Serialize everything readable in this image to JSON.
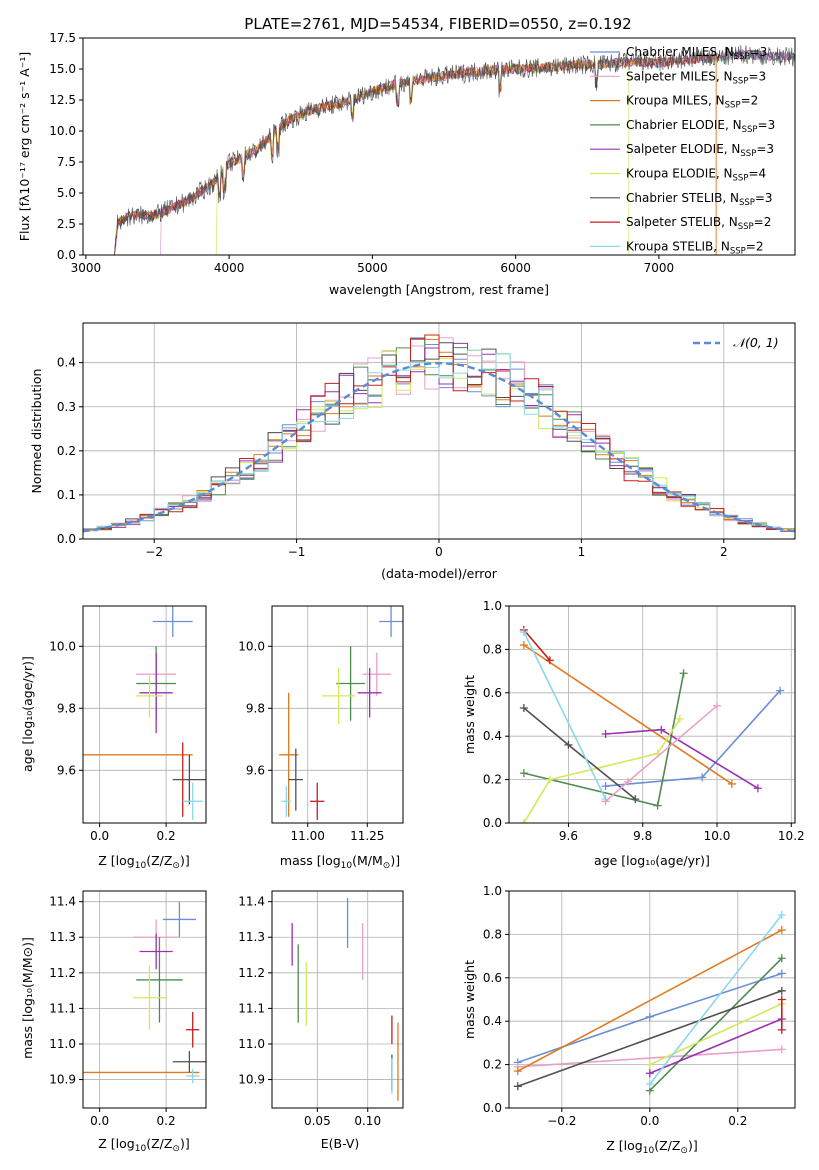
{
  "figure_title": "PLATE=2761, MJD=54534, FIBERID=0550, z=0.192",
  "models": [
    {
      "id": "chabrier-miles",
      "label": "Chabrier MILES, N",
      "sub": "SSP",
      "tail": "=3",
      "color": "#6b8ed6"
    },
    {
      "id": "salpeter-miles",
      "label": "Salpeter MILES, N",
      "sub": "SSP",
      "tail": "=3",
      "color": "#e8a0c8"
    },
    {
      "id": "kroupa-miles",
      "label": "Kroupa MILES, N",
      "sub": "SSP",
      "tail": "=2",
      "color": "#e07a1f"
    },
    {
      "id": "chabrier-elodie",
      "label": "Chabrier ELODIE, N",
      "sub": "SSP",
      "tail": "=3",
      "color": "#4f8a4f"
    },
    {
      "id": "salpeter-elodie",
      "label": "Salpeter ELODIE, N",
      "sub": "SSP",
      "tail": "=3",
      "color": "#9b30b0"
    },
    {
      "id": "kroupa-elodie",
      "label": "Kroupa ELODIE, N",
      "sub": "SSP",
      "tail": "=4",
      "color": "#d4e85a"
    },
    {
      "id": "chabrier-stelib",
      "label": "Chabrier STELIB, N",
      "sub": "SSP",
      "tail": "=3",
      "color": "#505050"
    },
    {
      "id": "salpeter-stelib",
      "label": "Salpeter STELIB, N",
      "sub": "SSP",
      "tail": "=2",
      "color": "#c81e1e"
    },
    {
      "id": "kroupa-stelib",
      "label": "Kroupa STELIB, N",
      "sub": "SSP",
      "tail": "=2",
      "color": "#8ad8e8"
    }
  ],
  "chart_data": [
    {
      "id": "spectrum",
      "type": "line",
      "xlabel": "wavelength [Angstrom, rest frame]",
      "ylabel": "Flux [fλ10⁻¹⁷ erg cm⁻² s⁻¹ A⁻¹]",
      "xlim": [
        2980,
        7950
      ],
      "ylim": [
        0,
        17.5
      ],
      "xticks": [
        3000,
        4000,
        5000,
        6000,
        7000
      ],
      "yticks": [
        0.0,
        2.5,
        5.0,
        7.5,
        10.0,
        12.5,
        15.0,
        17.5
      ],
      "continuum": {
        "x": [
          3200,
          3220,
          3300,
          3500,
          3700,
          3900,
          4000,
          4200,
          4400,
          4600,
          4800,
          5000,
          5200,
          5400,
          5600,
          5800,
          6000,
          6200,
          6400,
          6600,
          6800,
          7000,
          7200,
          7400,
          7600,
          7800
        ],
        "y": [
          0,
          2.6,
          3.1,
          3.3,
          4.3,
          5.9,
          7.4,
          8.5,
          10.8,
          11.8,
          12.3,
          13.2,
          13.9,
          14.3,
          14.6,
          14.9,
          15.0,
          15.1,
          15.3,
          15.4,
          15.6,
          15.5,
          15.8,
          15.9,
          16.2,
          16.0
        ]
      },
      "model_starts": [
        3200,
        3520,
        3200,
        3200,
        3200,
        3910,
        3200,
        3200,
        3200
      ],
      "model_ends": [
        7950,
        7950,
        7400,
        7950,
        7950,
        6790,
        7950,
        7400,
        7950
      ]
    },
    {
      "id": "residuals",
      "type": "histogram",
      "xlabel": "(data-model)/error",
      "ylabel": "Normed distribution",
      "xlim": [
        -2.5,
        2.5
      ],
      "ylim": [
        0,
        0.49
      ],
      "xticks": [
        -2,
        -1,
        0,
        1,
        2
      ],
      "yticks": [
        0.0,
        0.1,
        0.2,
        0.3,
        0.4
      ],
      "bin_width": 0.1,
      "legend": "𝒩(0, 1)",
      "gaussian_color": "#5b8bd6"
    },
    {
      "id": "age-vs-Z",
      "type": "scatter",
      "xlabel_main": "Z [log",
      "xlabel_sub": "10",
      "xlabel_tail": "(Z/Z",
      "xlabel_sun": "⊙",
      "xlabel_end": ")]",
      "ylabel": "age  [log₁₀(age/yr)]",
      "xlim": [
        -0.05,
        0.32
      ],
      "ylim": [
        9.43,
        10.13
      ],
      "xticks": [
        0.0,
        0.2
      ],
      "yticks": [
        9.6,
        9.8,
        10.0
      ],
      "points": [
        {
          "x": 0.22,
          "y": 10.08,
          "xerr": 0.06,
          "yerr": 0.05
        },
        {
          "x": 0.17,
          "y": 9.91,
          "xerr": 0.06,
          "yerr": 0.07
        },
        {
          "x": 0.08,
          "y": 9.65,
          "xerr": 0.2,
          "yerr": 0.0
        },
        {
          "x": 0.17,
          "y": 9.88,
          "xerr": 0.06,
          "yerr": 0.12
        },
        {
          "x": 0.17,
          "y": 9.85,
          "xerr": 0.05,
          "yerr": 0.13
        },
        {
          "x": 0.15,
          "y": 9.84,
          "xerr": 0.04,
          "yerr": 0.07
        },
        {
          "x": 0.27,
          "y": 9.57,
          "xerr": 0.05,
          "yerr": 0.08
        },
        {
          "x": 0.25,
          "y": 9.57,
          "xerr": 0.0,
          "yerr": 0.12
        },
        {
          "x": 0.28,
          "y": 9.5,
          "xerr": 0.03,
          "yerr": 0.06
        }
      ]
    },
    {
      "id": "age-vs-mass",
      "type": "scatter",
      "xlabel_main": "mass [log",
      "xlabel_sub": "10",
      "xlabel_tail": "(M/M",
      "xlabel_sun": "⊙",
      "xlabel_end": ")]",
      "xlim": [
        10.85,
        11.4
      ],
      "ylim": [
        9.43,
        10.13
      ],
      "xticks": [
        11.0,
        11.25
      ],
      "yticks": [
        9.6,
        9.8,
        10.0
      ],
      "points": [
        {
          "x": 11.35,
          "y": 10.08,
          "xerr": 0.05,
          "yerr": 0.05
        },
        {
          "x": 11.29,
          "y": 9.91,
          "xerr": 0.06,
          "yerr": 0.07
        },
        {
          "x": 10.92,
          "y": 9.65,
          "xerr": 0.04,
          "yerr": 0.2
        },
        {
          "x": 11.18,
          "y": 9.88,
          "xerr": 0.06,
          "yerr": 0.12
        },
        {
          "x": 11.26,
          "y": 9.85,
          "xerr": 0.05,
          "yerr": 0.08
        },
        {
          "x": 11.13,
          "y": 9.84,
          "xerr": 0.07,
          "yerr": 0.09
        },
        {
          "x": 10.95,
          "y": 9.57,
          "xerr": 0.03,
          "yerr": 0.1
        },
        {
          "x": 11.04,
          "y": 9.5,
          "xerr": 0.03,
          "yerr": 0.06
        },
        {
          "x": 10.91,
          "y": 9.5,
          "xerr": 0.02,
          "yerr": 0.05
        }
      ]
    },
    {
      "id": "weight-vs-age",
      "type": "line",
      "xlabel": "age  [log₁₀(age/yr)]",
      "ylabel": "mass weight",
      "xlim": [
        9.44,
        10.21
      ],
      "ylim": [
        0,
        1.0
      ],
      "xticks": [
        9.6,
        9.8,
        10.0,
        10.2
      ],
      "yticks": [
        0.0,
        0.2,
        0.4,
        0.6,
        0.8,
        1.0
      ],
      "series": [
        {
          "x": [
            9.7,
            9.96,
            10.17
          ],
          "y": [
            0.17,
            0.21,
            0.61
          ]
        },
        {
          "x": 9.7,
          "y": null
        },
        {
          "x": [
            9.48,
            10.04
          ],
          "y": [
            0.82,
            0.18
          ]
        },
        {
          "x": [
            9.48,
            9.84,
            9.91
          ],
          "y": [
            0.23,
            0.08,
            0.69
          ]
        },
        {
          "x": [
            9.7,
            9.85,
            10.11
          ],
          "y": [
            0.41,
            0.43,
            0.16
          ]
        },
        {
          "x": [
            9.48,
            9.55,
            9.84,
            9.9
          ],
          "y": [
            0.0,
            0.2,
            0.32,
            0.48
          ]
        },
        {
          "x": [
            9.48,
            9.6,
            9.78
          ],
          "y": [
            0.53,
            0.36,
            0.11
          ]
        },
        {
          "x": [
            9.48,
            9.55
          ],
          "y": [
            0.89,
            0.75
          ]
        },
        {
          "x": [
            9.48,
            9.7
          ],
          "y": [
            0.88,
            0.11
          ]
        }
      ],
      "pink_series": {
        "x": [
          9.7,
          9.76,
          10.0
        ],
        "y": [
          0.1,
          0.19,
          0.54
        ]
      }
    },
    {
      "id": "mass-vs-Z",
      "type": "scatter",
      "xlabel_main": "Z [log",
      "xlabel_sub": "10",
      "xlabel_tail": "(Z/Z",
      "xlabel_sun": "⊙",
      "xlabel_end": ")]",
      "ylabel": "mass [log₁₀(M/M⊙)]",
      "xlim": [
        -0.05,
        0.32
      ],
      "ylim": [
        10.82,
        11.43
      ],
      "xticks": [
        0.0,
        0.2
      ],
      "yticks": [
        10.9,
        11.0,
        11.1,
        11.2,
        11.3,
        11.4
      ],
      "points": [
        {
          "x": 0.24,
          "y": 11.35,
          "xerr": 0.05,
          "yerr": 0.05
        },
        {
          "x": 0.17,
          "y": 11.3,
          "xerr": 0.07,
          "yerr": 0.05
        },
        {
          "x": 0.08,
          "y": 10.92,
          "xerr": 0.22,
          "yerr": 0.0
        },
        {
          "x": 0.18,
          "y": 11.18,
          "xerr": 0.07,
          "yerr": 0.12
        },
        {
          "x": 0.17,
          "y": 11.26,
          "xerr": 0.05,
          "yerr": 0.05
        },
        {
          "x": 0.15,
          "y": 11.13,
          "xerr": 0.05,
          "yerr": 0.09
        },
        {
          "x": 0.27,
          "y": 10.95,
          "xerr": 0.05,
          "yerr": 0.03
        },
        {
          "x": 0.28,
          "y": 11.04,
          "xerr": 0.02,
          "yerr": 0.05
        },
        {
          "x": 0.28,
          "y": 10.91,
          "xerr": 0.02,
          "yerr": 0.02
        }
      ]
    },
    {
      "id": "mass-vs-ebv",
      "type": "scatter",
      "xlabel": "E(B-V)",
      "xlim": [
        0.005,
        0.135
      ],
      "ylim": [
        10.82,
        11.43
      ],
      "xticks": [
        0.05,
        0.1
      ],
      "yticks": [
        10.9,
        11.0,
        11.1,
        11.2,
        11.3,
        11.4
      ],
      "points": [
        {
          "x": 0.08,
          "y": 11.34,
          "xerr": 0,
          "yerr": 0.07
        },
        {
          "x": 0.095,
          "y": 11.26,
          "xerr": 0,
          "yerr": 0.08
        },
        {
          "x": 0.13,
          "y": 10.95,
          "xerr": 0,
          "yerr": 0.11
        },
        {
          "x": 0.031,
          "y": 11.17,
          "xerr": 0,
          "yerr": 0.11
        },
        {
          "x": 0.025,
          "y": 11.28,
          "xerr": 0,
          "yerr": 0.06
        },
        {
          "x": 0.039,
          "y": 11.14,
          "xerr": 0,
          "yerr": 0.09
        },
        {
          "x": 0.124,
          "y": 10.92,
          "xerr": 0,
          "yerr": 0.05
        },
        {
          "x": 0.124,
          "y": 11.04,
          "xerr": 0,
          "yerr": 0.04
        },
        {
          "x": 0.124,
          "y": 10.91,
          "xerr": 0,
          "yerr": 0.05
        }
      ]
    },
    {
      "id": "weight-vs-Z",
      "type": "line",
      "xlabel_main": "Z [log",
      "xlabel_sub": "10",
      "xlabel_tail": "(Z/Z",
      "xlabel_sun": "⊙",
      "xlabel_end": ")]",
      "ylabel": "mass weight",
      "xlim": [
        -0.32,
        0.33
      ],
      "ylim": [
        0,
        1.0
      ],
      "xticks": [
        -0.2,
        0.0,
        0.2
      ],
      "yticks": [
        0.0,
        0.2,
        0.4,
        0.6,
        0.8,
        1.0
      ],
      "series": [
        {
          "x": [
            -0.3,
            0.0,
            0.3
          ],
          "y": [
            0.21,
            0.42,
            0.62
          ]
        },
        {
          "x": [
            -0.3,
            0.3
          ],
          "y": [
            0.19,
            0.27
          ]
        },
        {
          "x": [
            -0.3,
            0.3
          ],
          "y": [
            0.17,
            0.82
          ]
        },
        {
          "x": [
            0.0,
            0.3
          ],
          "y": [
            0.08,
            0.69
          ]
        },
        {
          "x": [
            0.0,
            0.3
          ],
          "y": [
            0.16,
            0.41
          ]
        },
        {
          "x": [
            0.0,
            0.3
          ],
          "y": [
            0.2,
            0.48
          ]
        },
        {
          "x": [
            -0.3,
            0.3
          ],
          "y": [
            0.1,
            0.54
          ]
        },
        {
          "x": [
            0.3,
            0.3
          ],
          "y": [
            0.36,
            0.5
          ]
        },
        {
          "x": [
            0.0,
            0.3
          ],
          "y": [
            0.11,
            0.89
          ]
        }
      ]
    }
  ]
}
